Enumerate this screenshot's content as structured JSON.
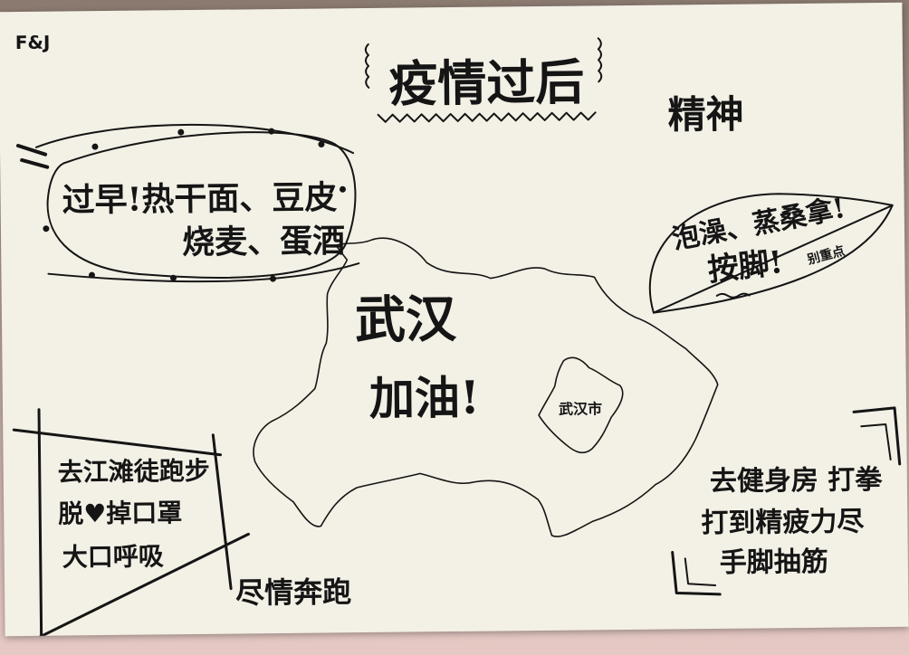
{
  "corner": "F&J",
  "title": "疫情过后",
  "heading_right": "精神",
  "breakfast": {
    "line1": "过早!热干面、豆皮",
    "line2": "烧麦、蛋酒"
  },
  "leaf": {
    "line1": "泡澡、蒸桑拿!",
    "line2": "按脚!",
    "note": "别重点"
  },
  "map": {
    "line1": "武汉",
    "line2": "加油!",
    "city": "武汉市"
  },
  "box": {
    "line1": "去江滩徒跑步",
    "line2": "脱♥掉口罩",
    "line3": "大口呼吸"
  },
  "run": "尽情奔跑",
  "gym": {
    "line1": "去健身房 打拳",
    "line2": "打到精疲力尽",
    "line3": "手脚抽筋"
  },
  "colors": {
    "paper": "#f3f0e6",
    "ink": "#151515",
    "desk": "#d9b8b4"
  }
}
